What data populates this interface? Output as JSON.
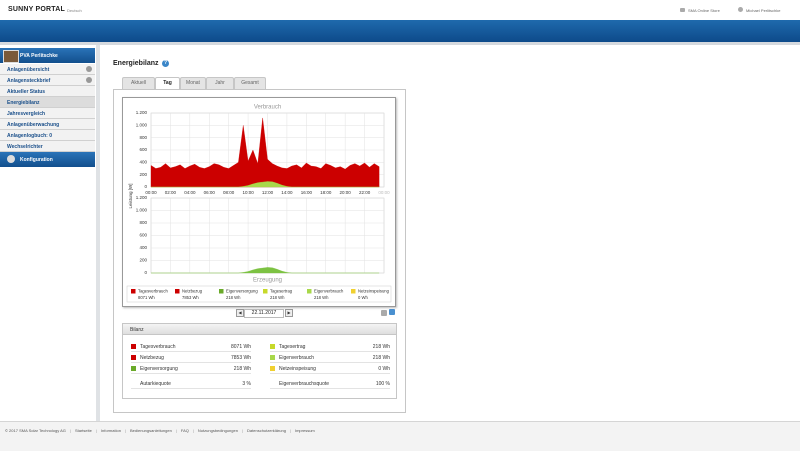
{
  "header": {
    "logo": "SUNNY PORTAL",
    "language": "Deutsch",
    "store": "SMA Online Store",
    "user": "Michael Perlitschke"
  },
  "sidebar": {
    "plant": "PVA Perlitschke",
    "items": [
      "Anlagenübersicht",
      "Anlagensteckbrief",
      "Aktueller Status",
      "Energiebilanz",
      "Jahresvergleich",
      "Anlagenüberwachung",
      "Anlagenlogbuch: 0",
      "Wechselrichter"
    ],
    "config": "Konfiguration"
  },
  "main": {
    "title": "Energiebilanz",
    "tabs": [
      "Aktuell",
      "Tag",
      "Monat",
      "Jahr",
      "Gesamt"
    ],
    "date": "22.11.2017"
  },
  "chart_data": [
    {
      "type": "area",
      "title": "Verbrauch",
      "y_label": "Leistung [W]",
      "x": [
        0,
        0.5,
        1,
        1.5,
        2,
        2.5,
        3,
        3.5,
        4,
        4.5,
        5,
        5.5,
        6,
        6.5,
        7,
        7.5,
        8,
        8.5,
        9,
        9.5,
        10,
        10.5,
        11,
        11.5,
        12,
        12.5,
        13,
        13.5,
        14,
        14.5,
        15,
        15.5,
        16,
        16.5,
        17,
        17.5,
        18,
        18.5,
        19,
        19.5,
        20,
        20.5,
        21,
        21.5,
        22,
        22.5,
        23,
        23.5
      ],
      "xlim": [
        0,
        24
      ],
      "xticks": [
        {
          "value": 0,
          "label": "00:00"
        },
        {
          "value": 2,
          "label": "02:00"
        },
        {
          "value": 4,
          "label": "04:00"
        },
        {
          "value": 6,
          "label": "06:00"
        },
        {
          "value": 8,
          "label": "08:00"
        },
        {
          "value": 10,
          "label": "10:00"
        },
        {
          "value": 12,
          "label": "12:00"
        },
        {
          "value": 14,
          "label": "14:00"
        },
        {
          "value": 16,
          "label": "16:00"
        },
        {
          "value": 18,
          "label": "18:00"
        },
        {
          "value": 20,
          "label": "20:00"
        },
        {
          "value": 22,
          "label": "22:00"
        },
        {
          "value": 24,
          "label": "00:00"
        }
      ],
      "ylim": [
        0,
        1200
      ],
      "yticks": [
        0,
        200,
        400,
        600,
        800,
        {
          "value": 1000,
          "label": "1.000"
        },
        {
          "value": 1200,
          "label": "1.200"
        }
      ],
      "grid": true,
      "series": [
        {
          "name": "Tagesverbrauch",
          "color": "#cc0000",
          "values": [
            350,
            300,
            320,
            380,
            310,
            330,
            360,
            300,
            340,
            370,
            320,
            300,
            330,
            380,
            360,
            320,
            300,
            350,
            400,
            1000,
            420,
            600,
            380,
            1120,
            450,
            380,
            340,
            310,
            300,
            340,
            360,
            310,
            390,
            340,
            330,
            300,
            380,
            350,
            310,
            330,
            290,
            350,
            380,
            340,
            390,
            320,
            380,
            330
          ]
        },
        {
          "name": "Eigenverbrauch",
          "color": "#a8d84a",
          "values": [
            0,
            0,
            0,
            0,
            0,
            0,
            0,
            0,
            0,
            0,
            0,
            0,
            0,
            0,
            0,
            0,
            0,
            0,
            0,
            10,
            25,
            50,
            70,
            80,
            90,
            85,
            60,
            30,
            10,
            0,
            0,
            0,
            0,
            0,
            0,
            0,
            0,
            0,
            0,
            0,
            0,
            0,
            0,
            0,
            0,
            0,
            0,
            0
          ]
        }
      ]
    },
    {
      "type": "area",
      "title": "Erzeugung",
      "x": [
        0,
        0.5,
        1,
        1.5,
        2,
        2.5,
        3,
        3.5,
        4,
        4.5,
        5,
        5.5,
        6,
        6.5,
        7,
        7.5,
        8,
        8.5,
        9,
        9.5,
        10,
        10.5,
        11,
        11.5,
        12,
        12.5,
        13,
        13.5,
        14,
        14.5,
        15,
        15.5,
        16,
        16.5,
        17,
        17.5,
        18,
        18.5,
        19,
        19.5,
        20,
        20.5,
        21,
        21.5,
        22,
        22.5,
        23,
        23.5
      ],
      "xlim": [
        0,
        24
      ],
      "xticks": [
        0,
        2,
        4,
        6,
        8,
        10,
        12,
        14,
        16,
        18,
        20,
        22,
        24
      ],
      "ylim": [
        0,
        1200
      ],
      "yticks": [
        0,
        200,
        400,
        600,
        800,
        {
          "value": 1000,
          "label": "1.000"
        },
        {
          "value": 1200,
          "label": "1.200"
        }
      ],
      "grid": true,
      "series": [
        {
          "name": "Tagesertrag",
          "color": "#7cc242",
          "values": [
            0,
            0,
            0,
            0,
            0,
            0,
            0,
            0,
            0,
            0,
            0,
            0,
            0,
            0,
            0,
            0,
            0,
            0,
            0,
            10,
            25,
            50,
            70,
            80,
            90,
            85,
            60,
            30,
            10,
            0,
            0,
            0,
            0,
            0,
            0,
            0,
            0,
            0,
            0,
            0,
            0,
            0,
            0,
            0,
            0,
            0,
            0,
            0
          ]
        }
      ]
    }
  ],
  "legend": [
    {
      "name": "Tagesverbrauch",
      "value": "8071 Wh",
      "color": "#cc0000"
    },
    {
      "name": "Netzbezug",
      "value": "7853 Wh",
      "color": "#cc0000"
    },
    {
      "name": "Eigenversorgung",
      "value": "218 Wh",
      "color": "#6aaa2a"
    },
    {
      "name": "Tagesertrag",
      "value": "218 Wh",
      "color": "#c7d92a"
    },
    {
      "name": "Eigenverbrauch",
      "value": "218 Wh",
      "color": "#a8d84a"
    },
    {
      "name": "Netzeinspeisung",
      "value": "0 Wh",
      "color": "#f0d030"
    }
  ],
  "bilanz": {
    "title": "Bilanz",
    "left": [
      {
        "label": "Tagesverbrauch",
        "value": "8071 Wh",
        "color": "#cc0000"
      },
      {
        "label": "Netzbezug",
        "value": "7853 Wh",
        "color": "#cc0000"
      },
      {
        "label": "Eigenversorgung",
        "value": "218 Wh",
        "color": "#6aaa2a"
      }
    ],
    "right": [
      {
        "label": "Tagesertrag",
        "value": "218 Wh",
        "color": "#c7d92a"
      },
      {
        "label": "Eigenverbrauch",
        "value": "218 Wh",
        "color": "#a8d84a"
      },
      {
        "label": "Netzeinspeisung",
        "value": "0 Wh",
        "color": "#f0d030"
      }
    ],
    "left_quota": {
      "label": "Autarkiequote",
      "value": "3 %"
    },
    "right_quota": {
      "label": "Eigenverbrauchsquote",
      "value": "100 %"
    }
  },
  "footer": [
    "© 2017 SMA Solar Technology AG",
    "Startseite",
    "Information",
    "Bedienungsanleitungen",
    "FAQ",
    "Nutzungsbedingungen",
    "Datenschutzerklärung",
    "Impressum"
  ]
}
